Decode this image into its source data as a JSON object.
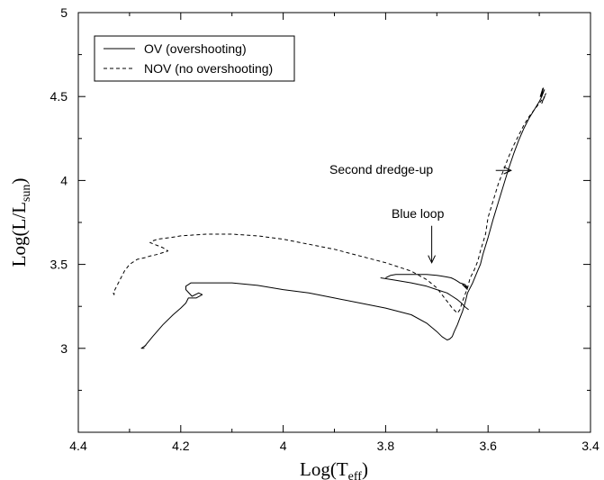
{
  "chart_data": {
    "type": "line",
    "title": "",
    "xlabel": {
      "main": "Log(T",
      "sub": "eff",
      "close": ")"
    },
    "ylabel": {
      "main": "Log(L/L",
      "sub": "sun",
      "close": ")"
    },
    "xlim": [
      4.4,
      3.4
    ],
    "ylim": [
      2.5,
      5.0
    ],
    "x_ticks": [
      4.4,
      4.2,
      4.0,
      3.8,
      3.6,
      3.4
    ],
    "x_tick_labels": [
      "4.4",
      "4.2",
      "4",
      "3.8",
      "3.6",
      "3.4"
    ],
    "y_ticks": [
      3.0,
      3.5,
      4.0,
      4.5,
      5.0
    ],
    "y_tick_labels": [
      "3",
      "3.5",
      "4",
      "4.5",
      "5"
    ],
    "grid": false,
    "legend_position": "top-left",
    "series": [
      {
        "name": "OV (overshooting)",
        "style": "solid",
        "x": [
          4.271,
          4.277,
          4.272,
          4.268,
          4.271,
          4.255,
          4.235,
          4.215,
          4.2,
          4.19,
          4.185,
          4.17,
          4.158,
          4.165,
          4.178,
          4.19,
          4.19,
          4.18,
          4.15,
          4.1,
          4.05,
          4.0,
          3.95,
          3.9,
          3.85,
          3.8,
          3.75,
          3.72,
          3.7,
          3.69,
          3.68,
          3.675,
          3.67,
          3.666,
          3.66,
          3.655,
          3.65,
          3.645,
          3.64,
          3.63,
          3.622,
          3.615,
          3.61,
          3.6,
          3.59,
          3.58,
          3.57,
          3.56,
          3.55,
          3.54,
          3.53,
          3.52,
          3.51,
          3.5,
          3.495,
          3.49,
          3.497,
          3.492,
          3.498,
          3.493
        ],
        "y": [
          3.0,
          3.0,
          3.01,
          3.02,
          3.01,
          3.07,
          3.14,
          3.2,
          3.24,
          3.27,
          3.3,
          3.3,
          3.32,
          3.33,
          3.31,
          3.35,
          3.37,
          3.39,
          3.39,
          3.39,
          3.375,
          3.35,
          3.33,
          3.3,
          3.27,
          3.24,
          3.2,
          3.15,
          3.1,
          3.07,
          3.05,
          3.055,
          3.07,
          3.1,
          3.14,
          3.18,
          3.22,
          3.27,
          3.33,
          3.39,
          3.45,
          3.5,
          3.56,
          3.66,
          3.77,
          3.87,
          3.97,
          4.07,
          4.16,
          4.24,
          4.31,
          4.37,
          4.42,
          4.47,
          4.5,
          4.54,
          4.5,
          4.55,
          4.5,
          4.55
        ]
      },
      {
        "name": "NOV (no overshooting)",
        "style": "dashed",
        "x": [
          4.332,
          4.33,
          4.33,
          4.32,
          4.31,
          4.3,
          4.285,
          4.27,
          4.26,
          4.245,
          4.225,
          4.235,
          4.26,
          4.255,
          4.245,
          4.22,
          4.2,
          4.15,
          4.1,
          4.05,
          4.0,
          3.95,
          3.9,
          3.85,
          3.8,
          3.75,
          3.72,
          3.7,
          3.69,
          3.68,
          3.67,
          3.66,
          3.655,
          3.65,
          3.64,
          3.635,
          3.628,
          3.62,
          3.615,
          3.605,
          3.6,
          3.59,
          3.58,
          3.57,
          3.56,
          3.55,
          3.54,
          3.53,
          3.52,
          3.51,
          3.5,
          3.49,
          3.495,
          3.488,
          3.494,
          3.487
        ],
        "y": [
          3.33,
          3.32,
          3.34,
          3.4,
          3.46,
          3.5,
          3.53,
          3.54,
          3.55,
          3.56,
          3.58,
          3.6,
          3.63,
          3.64,
          3.65,
          3.66,
          3.67,
          3.68,
          3.68,
          3.67,
          3.65,
          3.62,
          3.59,
          3.55,
          3.51,
          3.46,
          3.41,
          3.36,
          3.32,
          3.28,
          3.24,
          3.21,
          3.23,
          3.28,
          3.36,
          3.42,
          3.46,
          3.52,
          3.58,
          3.68,
          3.78,
          3.88,
          3.98,
          4.06,
          4.14,
          4.21,
          4.27,
          4.33,
          4.38,
          4.42,
          4.46,
          4.5,
          4.46,
          4.51,
          4.47,
          4.52
        ]
      },
      {
        "name": "",
        "style": "solid",
        "x": [
          3.8,
          3.79,
          3.78,
          3.76,
          3.74,
          3.72,
          3.7,
          3.69,
          3.68,
          3.672,
          3.665,
          3.66,
          3.655,
          3.65,
          3.645,
          3.642,
          3.64,
          3.645,
          3.65,
          3.645,
          3.64
        ],
        "y": [
          3.42,
          3.435,
          3.44,
          3.44,
          3.44,
          3.44,
          3.435,
          3.43,
          3.425,
          3.42,
          3.41,
          3.4,
          3.39,
          3.385,
          3.38,
          3.37,
          3.36,
          3.37,
          3.38,
          3.365,
          3.35
        ]
      },
      {
        "name": "",
        "style": "solid",
        "x": [
          3.81,
          3.78,
          3.75,
          3.72,
          3.7,
          3.68,
          3.67,
          3.66,
          3.652,
          3.646,
          3.642,
          3.638
        ],
        "y": [
          3.42,
          3.405,
          3.39,
          3.37,
          3.35,
          3.33,
          3.31,
          3.29,
          3.27,
          3.25,
          3.24,
          3.23
        ]
      }
    ],
    "legend": [
      {
        "label": "OV (overshooting)",
        "style": "solid"
      },
      {
        "label": "NOV (no overshooting)",
        "style": "dashed"
      }
    ],
    "annotations": [
      {
        "text": "Second dredge-up",
        "arrow_from": [
          3.585,
          4.06
        ],
        "arrow_to": [
          3.555,
          4.06
        ]
      },
      {
        "text": "Blue loop",
        "arrow_from": [
          3.71,
          3.73
        ],
        "arrow_to": [
          3.71,
          3.51
        ]
      }
    ]
  }
}
